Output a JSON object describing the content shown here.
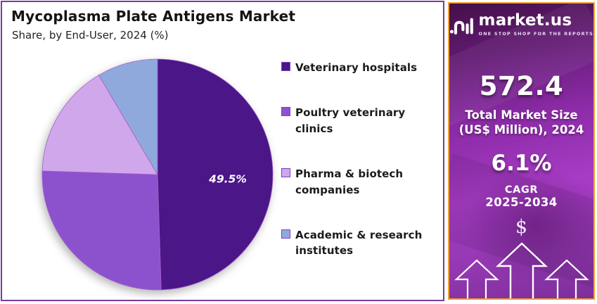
{
  "header": {
    "title": "Mycoplasma Plate Antigens Market",
    "subtitle": "Share, by End-User, 2024 (%)"
  },
  "chart_data": {
    "type": "pie",
    "title": "Mycoplasma Plate Antigens Market",
    "subtitle": "Share, by End-User, 2024 (%)",
    "categories": [
      "Veterinary hospitals",
      "Poultry veterinary clinics",
      "Pharma & biotech companies",
      "Academic & research institutes"
    ],
    "values": [
      49.5,
      26,
      16,
      8.5
    ],
    "colors": [
      "#4a1688",
      "#8c52ce",
      "#d1a7eb",
      "#90a9dd"
    ],
    "start_angle": 0,
    "direction": "clockwise",
    "legend_position": "right",
    "labeled_slice": {
      "index": 0,
      "text": "49.5%"
    }
  },
  "sidebar": {
    "brand": {
      "name": "market.us",
      "tagline": "ONE STOP SHOP FOR THE REPORTS"
    },
    "market_size_value": "572.4",
    "market_size_label_line1": "Total Market Size",
    "market_size_label_line2": "(US$ Million), 2024",
    "cagr_value": "6.1%",
    "cagr_label": "CAGR",
    "cagr_period": "2025-2034",
    "dollar_symbol": "$",
    "accent_border_color": "#f0a32f",
    "background_color": "#a73cc5"
  },
  "panel": {
    "border_color": "#7a3b9e",
    "background_color": "#ffffff"
  }
}
